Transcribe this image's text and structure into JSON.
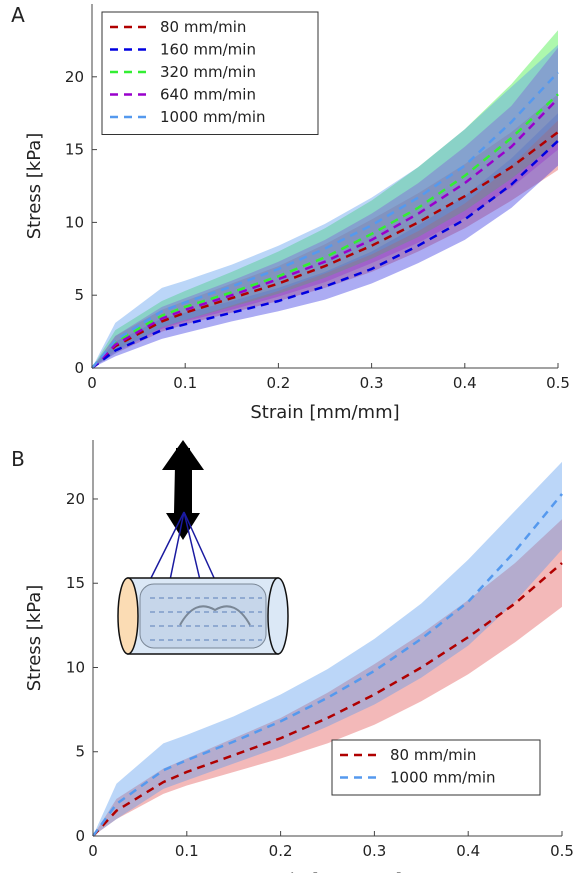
{
  "chart_data": [
    {
      "type": "line",
      "panel_label": "A",
      "x_label": "Strain [mm/mm]",
      "y_label": "Stress [kPa]",
      "xlim": [
        0,
        0.5
      ],
      "ylim": [
        0,
        25
      ],
      "xticks": [
        0,
        0.1,
        0.2,
        0.3,
        0.4,
        0.5
      ],
      "yticks": [
        0,
        5,
        10,
        15,
        20
      ],
      "legend": "upper left",
      "x": [
        0,
        0.025,
        0.075,
        0.1,
        0.15,
        0.2,
        0.25,
        0.3,
        0.35,
        0.4,
        0.45,
        0.5
      ],
      "series": [
        {
          "name": "80 mm/min",
          "color": "#b00000",
          "band_color": "#e05050",
          "values": [
            0,
            1.5,
            3.2,
            3.8,
            4.8,
            5.8,
            7.0,
            8.4,
            10.0,
            11.8,
            13.8,
            16.2
          ],
          "lower": [
            0,
            1.0,
            2.5,
            3.0,
            3.8,
            4.6,
            5.5,
            6.6,
            8.0,
            9.6,
            11.5,
            13.6
          ],
          "upper": [
            0,
            2.2,
            4.0,
            4.6,
            5.8,
            7.0,
            8.5,
            10.2,
            12.0,
            14.0,
            16.2,
            18.8
          ]
        },
        {
          "name": "160 mm/min",
          "color": "#0000e0",
          "band_color": "#3030e0",
          "values": [
            0,
            1.2,
            2.6,
            3.0,
            3.8,
            4.6,
            5.6,
            6.8,
            8.4,
            10.2,
            12.6,
            15.6
          ],
          "lower": [
            0,
            0.8,
            2.0,
            2.4,
            3.2,
            3.9,
            4.7,
            5.8,
            7.2,
            8.8,
            11.0,
            13.9
          ],
          "upper": [
            0,
            1.8,
            3.4,
            3.8,
            4.6,
            5.5,
            6.6,
            8.0,
            9.8,
            11.8,
            14.4,
            17.5
          ]
        },
        {
          "name": "320 mm/min",
          "color": "#33ee33",
          "band_color": "#33ee33",
          "values": [
            0,
            1.8,
            3.6,
            4.2,
            5.2,
            6.3,
            7.6,
            9.2,
            11.0,
            13.2,
            15.8,
            18.8
          ],
          "lower": [
            0,
            1.2,
            2.8,
            3.3,
            4.2,
            5.1,
            6.2,
            7.5,
            9.0,
            10.8,
            13.0,
            15.5
          ],
          "upper": [
            0,
            2.6,
            4.6,
            5.3,
            6.6,
            8.0,
            9.6,
            11.5,
            13.8,
            16.4,
            19.5,
            23.2
          ]
        },
        {
          "name": "640 mm/min",
          "color": "#9900cc",
          "band_color": "#9933cc",
          "values": [
            0,
            1.6,
            3.4,
            4.0,
            5.0,
            6.1,
            7.3,
            8.8,
            10.6,
            12.7,
            15.2,
            18.5
          ],
          "lower": [
            0,
            1.1,
            2.7,
            3.2,
            4.0,
            4.9,
            5.9,
            7.2,
            8.6,
            10.3,
            12.4,
            15.0
          ],
          "upper": [
            0,
            2.2,
            4.2,
            4.8,
            6.0,
            7.3,
            8.8,
            10.6,
            12.7,
            15.2,
            18.0,
            22.0
          ]
        },
        {
          "name": "1000 mm/min",
          "color": "#5599ee",
          "band_color": "#5599ee",
          "values": [
            0,
            1.9,
            3.9,
            4.5,
            5.6,
            6.8,
            8.2,
            9.8,
            11.7,
            13.9,
            16.9,
            20.3
          ],
          "lower": [
            0,
            1.0,
            2.8,
            3.3,
            4.3,
            5.3,
            6.5,
            7.8,
            9.4,
            11.3,
            13.9,
            17.0
          ],
          "upper": [
            0,
            3.1,
            5.5,
            6.0,
            7.1,
            8.4,
            9.9,
            11.7,
            13.8,
            16.4,
            19.3,
            22.2
          ]
        }
      ]
    },
    {
      "type": "line",
      "panel_label": "B",
      "x_label": "Strain [mm/mm]",
      "y_label": "Stress [kPa]",
      "xlim": [
        0,
        0.5
      ],
      "ylim": [
        0,
        23.5
      ],
      "xticks": [
        0,
        0.1,
        0.2,
        0.3,
        0.4,
        0.5
      ],
      "yticks": [
        0,
        5,
        10,
        15,
        20
      ],
      "legend": "lower right",
      "x": [
        0,
        0.025,
        0.075,
        0.1,
        0.15,
        0.2,
        0.25,
        0.3,
        0.35,
        0.4,
        0.45,
        0.5
      ],
      "series": [
        {
          "name": "80 mm/min",
          "color": "#b00000",
          "band_color": "#e05050",
          "values": [
            0,
            1.5,
            3.2,
            3.8,
            4.8,
            5.8,
            7.0,
            8.4,
            10.0,
            11.8,
            13.8,
            16.2
          ],
          "lower": [
            0,
            1.0,
            2.5,
            3.0,
            3.8,
            4.6,
            5.5,
            6.6,
            8.0,
            9.6,
            11.5,
            13.6
          ],
          "upper": [
            0,
            2.2,
            4.0,
            4.6,
            5.8,
            7.0,
            8.5,
            10.2,
            12.0,
            14.0,
            16.2,
            18.8
          ]
        },
        {
          "name": "1000 mm/min",
          "color": "#5599ee",
          "band_color": "#5599ee",
          "values": [
            0,
            1.9,
            3.9,
            4.5,
            5.6,
            6.8,
            8.2,
            9.8,
            11.7,
            13.9,
            16.9,
            20.3
          ],
          "lower": [
            0,
            1.0,
            2.8,
            3.3,
            4.3,
            5.3,
            6.5,
            7.8,
            9.4,
            11.3,
            13.9,
            17.0
          ],
          "upper": [
            0,
            3.1,
            5.5,
            6.0,
            7.1,
            8.4,
            9.9,
            11.7,
            13.8,
            16.4,
            19.3,
            22.2
          ]
        }
      ]
    }
  ]
}
